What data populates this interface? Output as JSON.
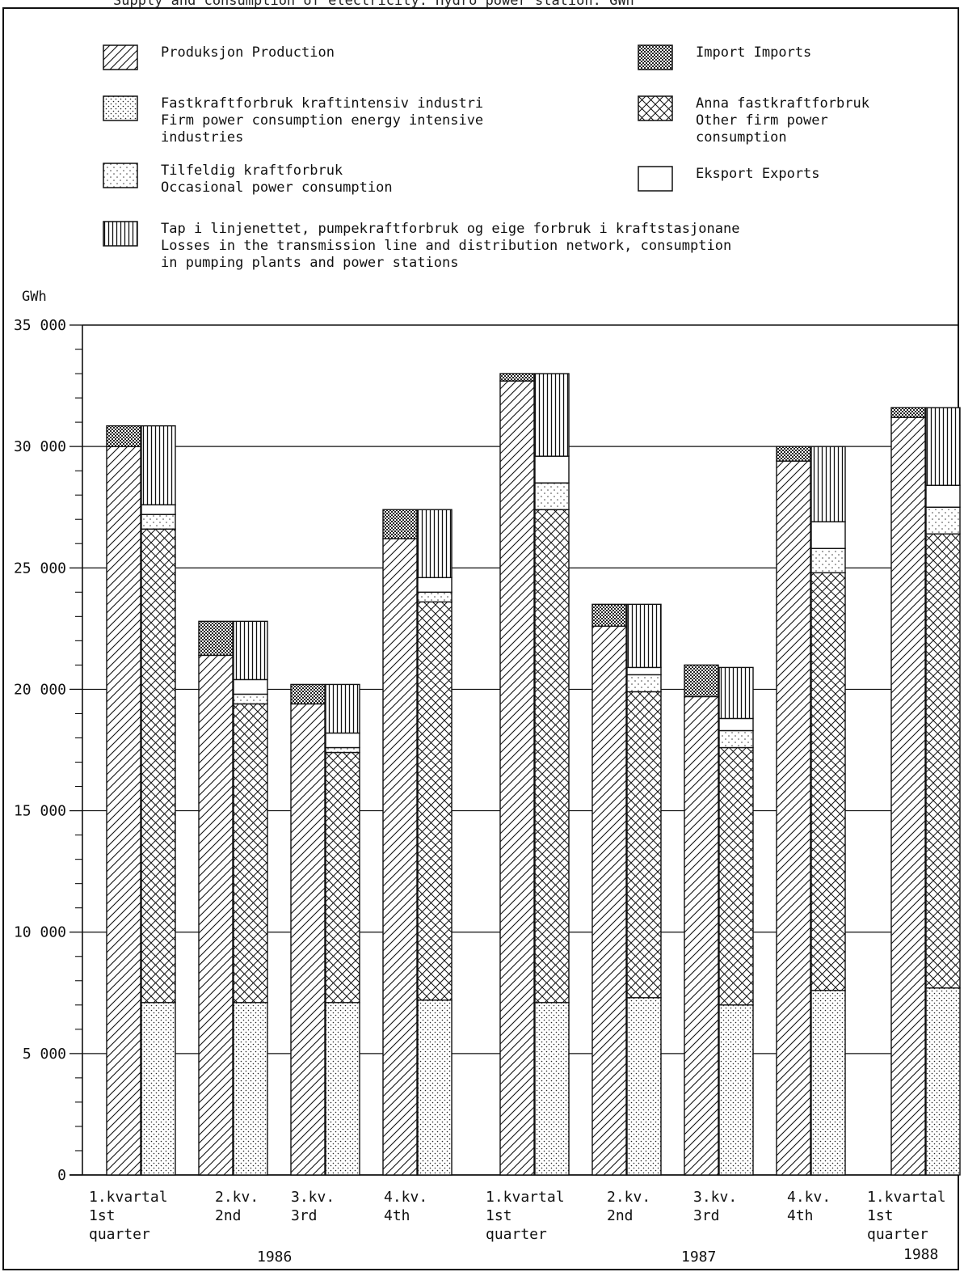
{
  "header": {
    "clipped_caption": "Supply and consumption of electricity. Hydro power station. GWh"
  },
  "legend": [
    {
      "key": "production",
      "pattern": "hatch-diagonal",
      "lines": [
        "Produksjon  Production"
      ]
    },
    {
      "key": "firm_energy_intensive",
      "pattern": "dense-dots",
      "lines": [
        "Fastkraftforbruk kraftintensiv industri",
        "Firm power consumption energy intensive",
        "industries"
      ]
    },
    {
      "key": "occasional",
      "pattern": "sparse-dots",
      "lines": [
        "Tilfeldig kraftforbruk",
        "Occasional power consumption"
      ]
    },
    {
      "key": "losses",
      "pattern": "vertical-lines",
      "lines": [
        "Tap i linjenettet, pumpekraftforbruk og eige forbruk i kraftstasjonane",
        "Losses in the transmission line and distribution network, consumption",
        "in pumping plants and  power  stations"
      ]
    },
    {
      "key": "imports",
      "pattern": "checker",
      "lines": [
        "Import  Imports"
      ]
    },
    {
      "key": "other_firm",
      "pattern": "cross-hatch",
      "lines": [
        "Anna fastkraftforbruk",
        "Other firm power",
        "consumption"
      ]
    },
    {
      "key": "exports",
      "pattern": "blank",
      "lines": [
        "Eksport  Exports"
      ]
    }
  ],
  "chart_data": {
    "type": "bar",
    "subtype": "stacked-paired",
    "ylabel": "GWh",
    "ylim": [
      0,
      35000
    ],
    "y_ticks": [
      0,
      5000,
      10000,
      15000,
      20000,
      25000,
      30000,
      35000
    ],
    "y_tick_labels": [
      "0",
      "5 000",
      "10 000",
      "15 000",
      "20 000",
      "25 000",
      "30 000",
      "35 000"
    ],
    "gridlines": true,
    "legend_position": "top",
    "categories": [
      {
        "lines": [
          "1.kvartal",
          "1st",
          "quarter"
        ]
      },
      {
        "lines": [
          "2.kv.",
          "2nd"
        ]
      },
      {
        "lines": [
          "3.kv.",
          "3rd"
        ]
      },
      {
        "lines": [
          "4.kv.",
          "4th"
        ]
      },
      {
        "lines": [
          "1.kvartal",
          "1st",
          "quarter"
        ]
      },
      {
        "lines": [
          "2.kv.",
          "2nd"
        ]
      },
      {
        "lines": [
          "3.kv.",
          "3rd"
        ]
      },
      {
        "lines": [
          "4.kv.",
          "4th"
        ]
      },
      {
        "lines": [
          "1.kvartal",
          "1st",
          "quarter"
        ]
      }
    ],
    "year_labels": [
      {
        "label": "1986",
        "category_index": 1.5
      },
      {
        "label": "1987",
        "category_index": 5.5
      },
      {
        "label": "1988",
        "category_index": 8
      }
    ],
    "supply": [
      {
        "production": 30000,
        "imports": 850
      },
      {
        "production": 21400,
        "imports": 1400
      },
      {
        "production": 19400,
        "imports": 800
      },
      {
        "production": 26200,
        "imports": 1200
      },
      {
        "production": 32700,
        "imports": 300
      },
      {
        "production": 22600,
        "imports": 900
      },
      {
        "production": 19700,
        "imports": 1300
      },
      {
        "production": 29400,
        "imports": 600
      },
      {
        "production": 31200,
        "imports": 400
      }
    ],
    "consumption": [
      {
        "firm_energy_intensive": 7100,
        "other_firm": 19500,
        "occasional": 600,
        "exports": 400,
        "losses": 3250
      },
      {
        "firm_energy_intensive": 7100,
        "other_firm": 12300,
        "occasional": 400,
        "exports": 600,
        "losses": 2400
      },
      {
        "firm_energy_intensive": 7100,
        "other_firm": 10300,
        "occasional": 200,
        "exports": 600,
        "losses": 2000
      },
      {
        "firm_energy_intensive": 7200,
        "other_firm": 16400,
        "occasional": 400,
        "exports": 600,
        "losses": 2800
      },
      {
        "firm_energy_intensive": 7100,
        "other_firm": 20300,
        "occasional": 1100,
        "exports": 1100,
        "losses": 3400
      },
      {
        "firm_energy_intensive": 7300,
        "other_firm": 12600,
        "occasional": 700,
        "exports": 300,
        "losses": 2600
      },
      {
        "firm_energy_intensive": 7000,
        "other_firm": 10600,
        "occasional": 700,
        "exports": 500,
        "losses": 2100
      },
      {
        "firm_energy_intensive": 7600,
        "other_firm": 17200,
        "occasional": 1000,
        "exports": 1100,
        "losses": 3100
      },
      {
        "firm_energy_intensive": 7700,
        "other_firm": 18700,
        "occasional": 1100,
        "exports": 900,
        "losses": 3200
      }
    ]
  }
}
